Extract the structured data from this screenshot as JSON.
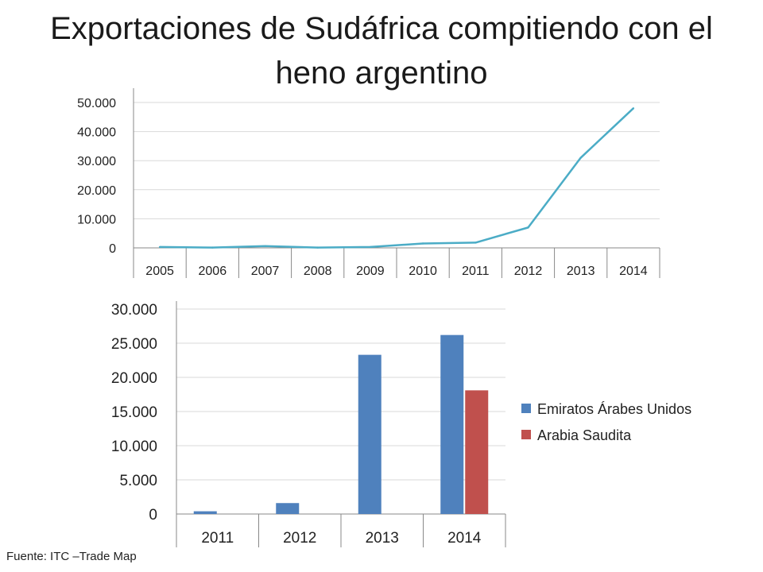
{
  "slide": {
    "title": "Exportaciones de Sudáfrica compitiendo con el heno argentino",
    "source": "Fuente: ITC –Trade Map"
  },
  "colors": {
    "line_series": "#4bacc6",
    "emiratos": "#4f81bd",
    "arabia": "#c0504d",
    "grid": "#d9d9d9",
    "axis": "#888888"
  },
  "chart_data": [
    {
      "type": "line",
      "title": "",
      "categories": [
        "2005",
        "2006",
        "2007",
        "2008",
        "2009",
        "2010",
        "2011",
        "2012",
        "2013",
        "2014"
      ],
      "series": [
        {
          "values": [
            300,
            100,
            600,
            100,
            300,
            1500,
            1800,
            7000,
            31000,
            48000
          ]
        }
      ],
      "yticks": [
        "0",
        "10.000",
        "20.000",
        "30.000",
        "40.000",
        "50.000"
      ],
      "ylim": [
        0,
        50000
      ],
      "grid": true,
      "legend": "none"
    },
    {
      "type": "bar",
      "title": "",
      "categories": [
        "2011",
        "2012",
        "2013",
        "2014"
      ],
      "series": [
        {
          "name": "Emiratos Árabes Unidos",
          "values": [
            400,
            1600,
            23300,
            26200
          ]
        },
        {
          "name": "Arabia Saudita",
          "values": [
            0,
            0,
            0,
            18100
          ]
        }
      ],
      "yticks": [
        "0",
        "5.000",
        "10.000",
        "15.000",
        "20.000",
        "25.000",
        "30.000"
      ],
      "ylim": [
        0,
        30000
      ],
      "grid": true,
      "legend": "right"
    }
  ]
}
